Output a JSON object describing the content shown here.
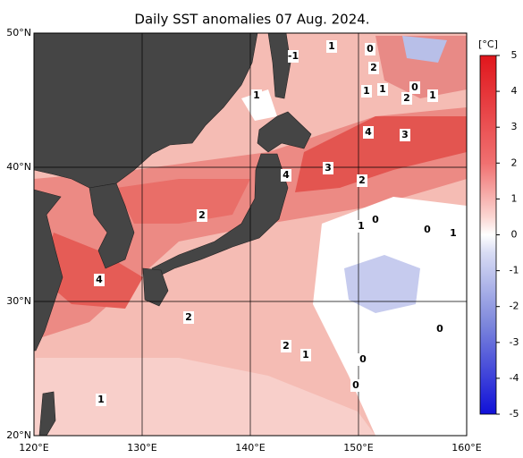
{
  "map": {
    "title": "Daily SST anomalies 07 Aug. 2024.",
    "lon_ticks": [
      {
        "value": 120,
        "label": "120°E"
      },
      {
        "value": 130,
        "label": "130°E"
      },
      {
        "value": 140,
        "label": "140°E"
      },
      {
        "value": 150,
        "label": "150°E"
      },
      {
        "value": 160,
        "label": "160°E"
      }
    ],
    "lat_ticks": [
      {
        "value": 50,
        "label": "50°N"
      },
      {
        "value": 40,
        "label": "40°N"
      },
      {
        "value": 30,
        "label": "30°N"
      },
      {
        "value": 20,
        "label": "20°N"
      }
    ],
    "lonlim": [
      120,
      160
    ],
    "latlim": [
      20,
      50
    ],
    "colorbar": {
      "unit": "[°C]",
      "lim": [
        -5,
        5
      ],
      "ticks": [
        5,
        4,
        3,
        2,
        1,
        0,
        -1,
        -2,
        -3,
        -4,
        -5
      ]
    },
    "contour_labels": [
      "-1",
      "1",
      "0",
      "2",
      "1",
      "1",
      "1",
      "0",
      "2",
      "1",
      "4",
      "3",
      "4",
      "3",
      "2",
      "2",
      "1",
      "0",
      "0",
      "1",
      "4",
      "2",
      "2",
      "1",
      "0",
      "0",
      "0",
      "1"
    ]
  }
}
